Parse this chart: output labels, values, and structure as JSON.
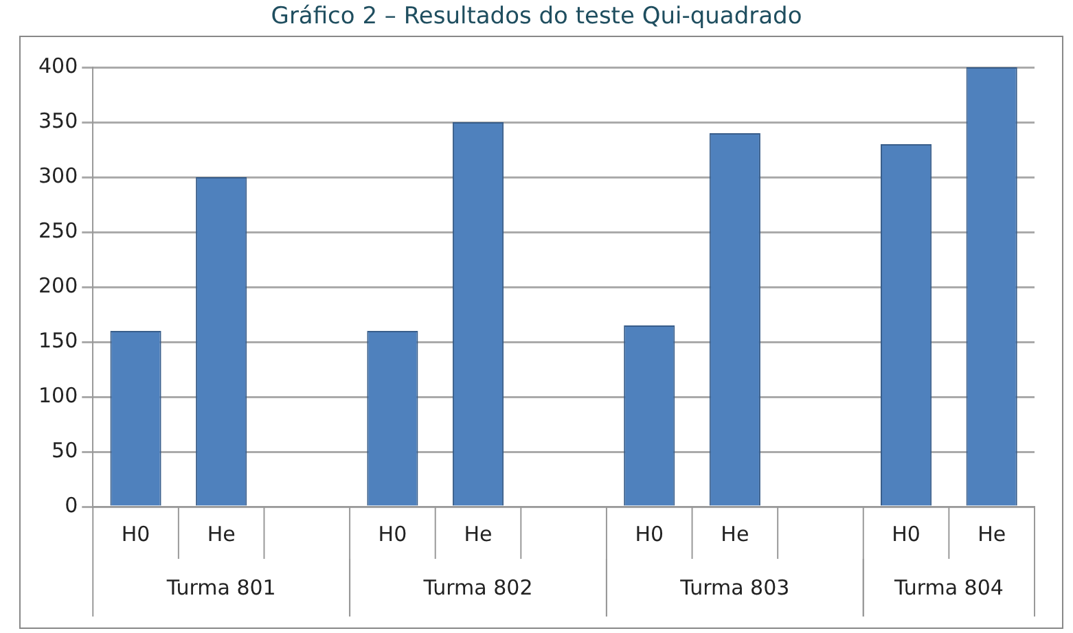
{
  "chart_data": {
    "type": "bar",
    "title": "Gráfico 2 – Resultados do teste Qui-quadrado",
    "categories": [
      "H0",
      "He",
      null,
      "H0",
      "He",
      null,
      "H0",
      "He",
      null,
      "H0",
      "He"
    ],
    "values": [
      160,
      300,
      null,
      160,
      350,
      null,
      165,
      340,
      null,
      330,
      400
    ],
    "color": "#4f81bd",
    "ylim": [
      0,
      400
    ],
    "yticks": [
      0,
      50,
      100,
      150,
      200,
      250,
      300,
      350,
      400
    ],
    "grid": "y",
    "annotations": [
      "Turma 801",
      "Turma 802",
      "Turma 803",
      "Turma 804"
    ]
  }
}
